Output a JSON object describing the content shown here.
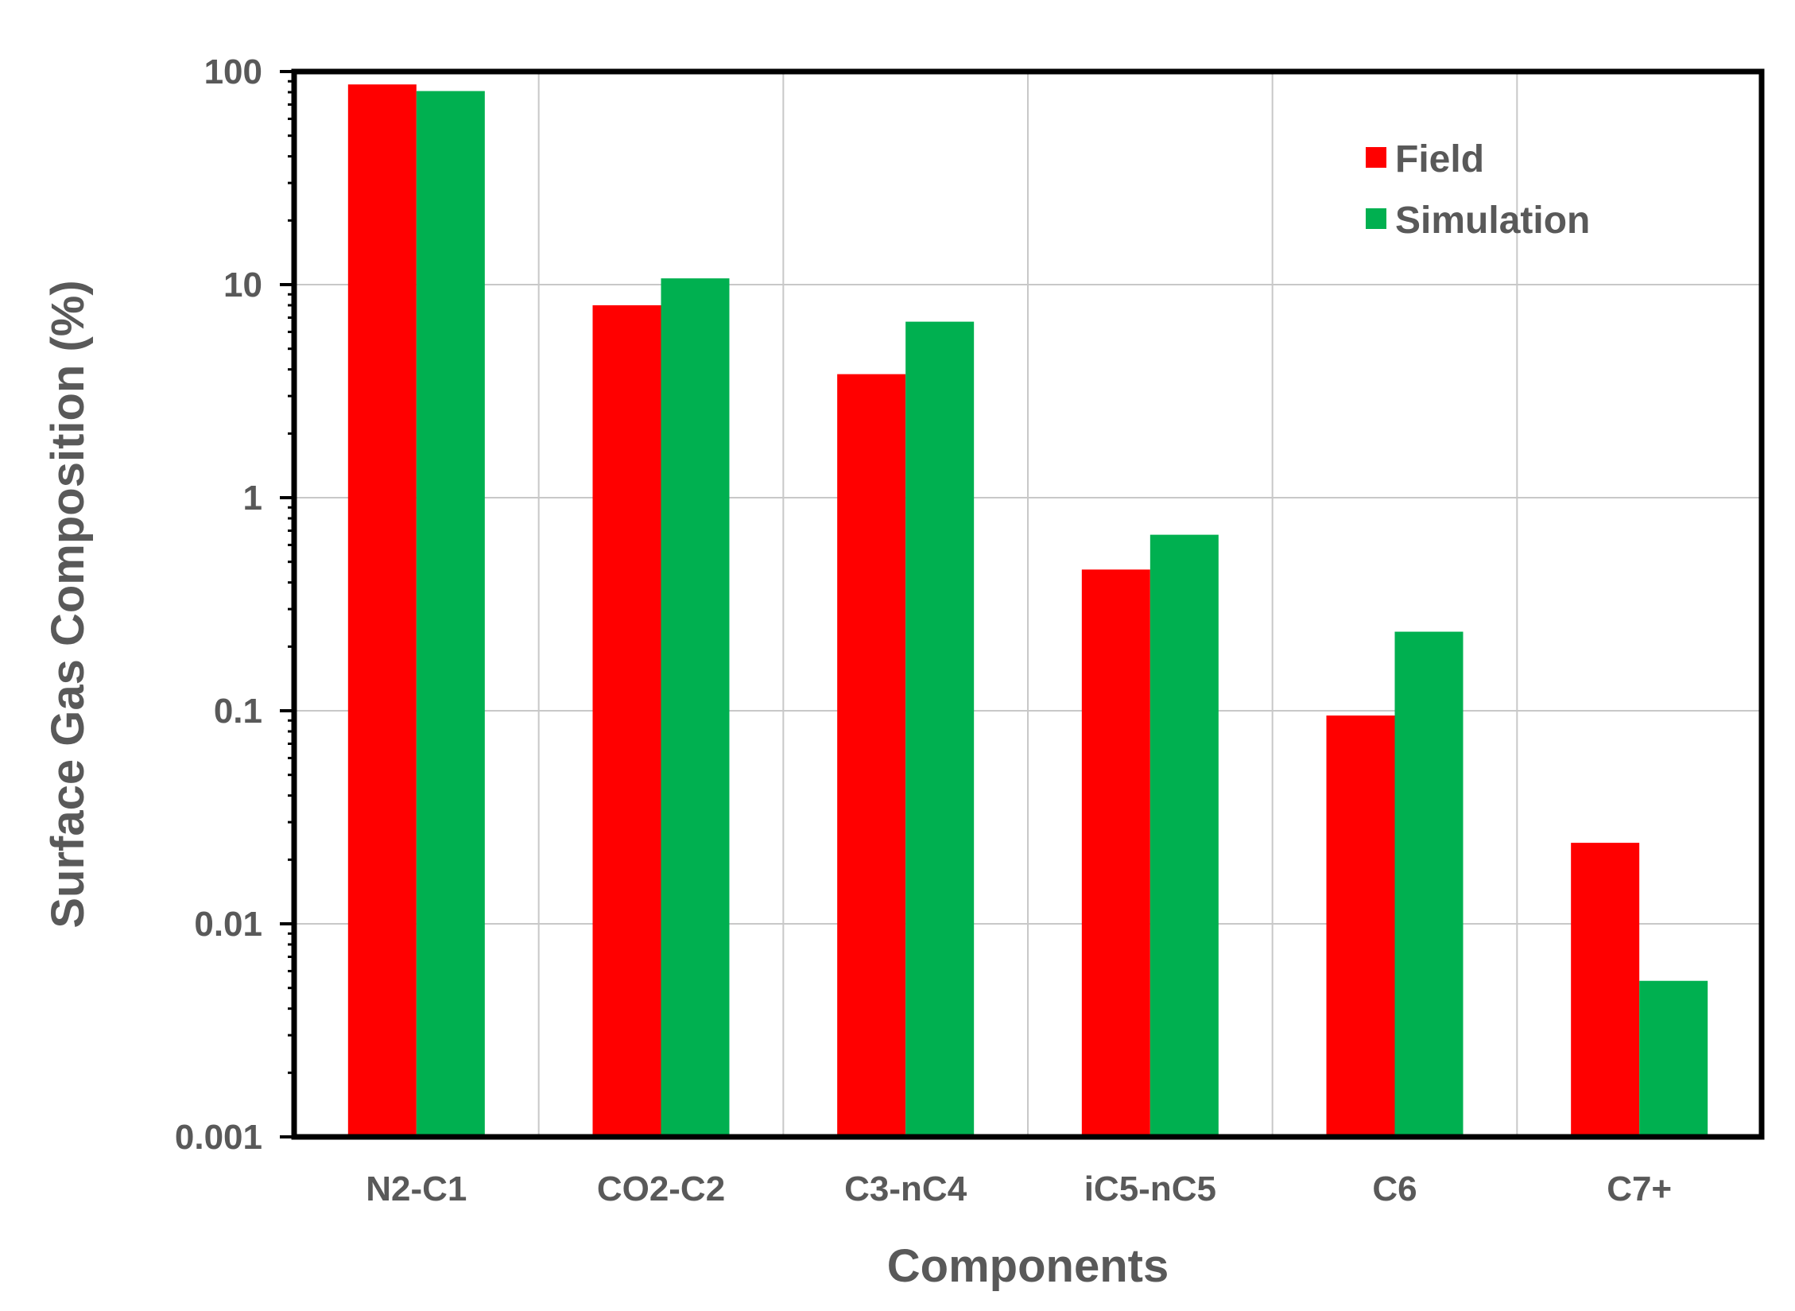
{
  "chart_data": {
    "type": "bar",
    "title": "",
    "xlabel": "Components",
    "ylabel": "Surface Gas Composition (%)",
    "yscale": "log",
    "ylim": [
      0.001,
      100
    ],
    "y_tick_labels": [
      "0.001",
      "0.01",
      "0.1",
      "1",
      "10",
      "100"
    ],
    "y_tick_values": [
      0.001,
      0.01,
      0.1,
      1,
      10,
      100
    ],
    "categories": [
      "N2-C1",
      "CO2-C2",
      "C3-nC4",
      "iC5-nC5",
      "C6",
      "C7+"
    ],
    "series": [
      {
        "name": "Field",
        "color": "#ff0000",
        "values": [
          87,
          8,
          3.8,
          0.46,
          0.095,
          0.024
        ]
      },
      {
        "name": "Simulation",
        "color": "#00b050",
        "values": [
          81,
          10.7,
          6.7,
          0.67,
          0.235,
          0.0054
        ]
      }
    ],
    "grid": true,
    "legend_position": "top-right"
  }
}
